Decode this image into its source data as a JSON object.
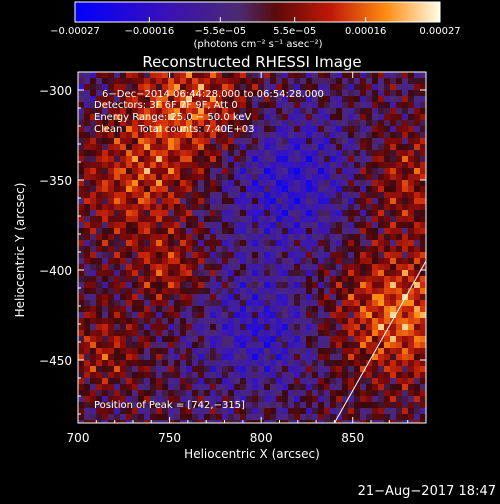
{
  "chart_data": {
    "type": "heatmap",
    "title": "Reconstructed RHESSI Image",
    "xlabel": "Heliocentric X (arcsec)",
    "ylabel": "Heliocentric Y (arcsec)",
    "xlim": [
      700,
      890
    ],
    "ylim": [
      -485,
      -290
    ],
    "xticks": [
      700,
      750,
      800,
      850
    ],
    "xtick_labels": [
      "700",
      "750",
      "800",
      "850"
    ],
    "yticks": [
      -300,
      -350,
      -400,
      -450
    ],
    "ytick_labels": [
      "−300",
      "−350",
      "−400",
      "−450"
    ],
    "colorbar": {
      "ticks": [
        -0.00027,
        -0.00016,
        -5.5e-05,
        5.5e-05,
        0.00016,
        0.00027
      ],
      "tick_labels": [
        "−0.00027",
        "−0.00016",
        "−5.5e−05",
        "5.5e−05",
        "0.00016",
        "0.00027"
      ],
      "units": "(photons cm⁻² s⁻¹ asec⁻²)",
      "range": [
        -0.00027,
        0.00027
      ]
    },
    "annotations": [
      "6−Dec−2014 06:44:28.000 to 06:54:28.000",
      "Detectors: 3F 6F 7F 9F, Att 0",
      "Energy Range: 25.0 − 50.0 keV",
      "Clean     Total counts: 7.40E+03"
    ],
    "peak_label": "Position of Peak = [742,−315]",
    "limb_line": [
      [
        840,
        -485
      ],
      [
        890,
        -395
      ]
    ]
  },
  "footer": {
    "timestamp": "21−Aug−2017 18:47"
  },
  "colors": {
    "background": "#000000",
    "text": "#ffffff"
  }
}
